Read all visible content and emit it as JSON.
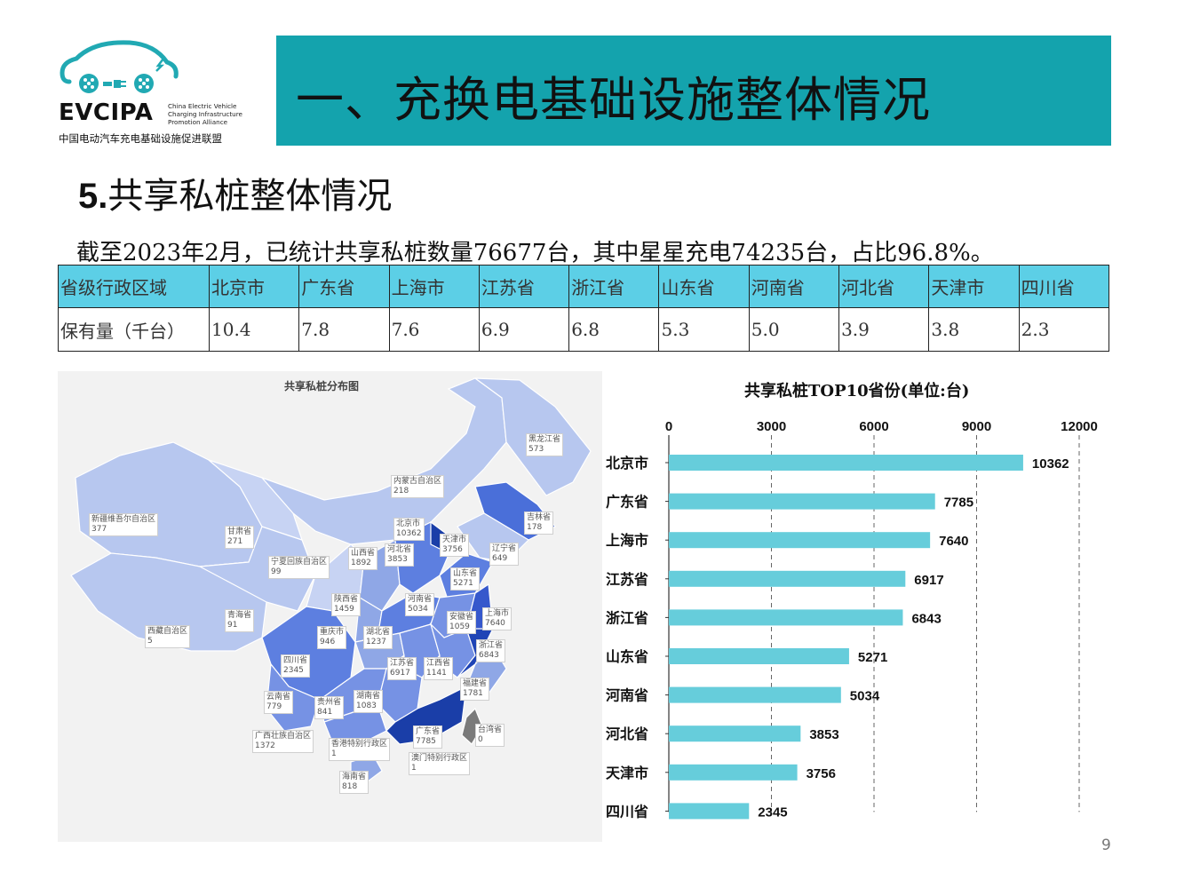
{
  "logo": {
    "wordmark": "EVCIPA",
    "en_lines": [
      "China Electric Vehicle",
      "Charging Infrastructure",
      "Promotion Alliance"
    ],
    "cn": "中国电动汽车充电基础设施促进联盟",
    "color": "#21a9b3"
  },
  "banner": {
    "title": "一、充换电基础设施整体情况",
    "color": "#14a3ad"
  },
  "section": {
    "num": "5.",
    "title": "共享私桩整体情况"
  },
  "summary": "截至2023年2月，已统计共享私桩数量76677台，其中星星充电74235台，占比96.8%。",
  "table": {
    "header_label": "省级行政区域",
    "row_label": "保有量（千台）",
    "provinces": [
      "北京市",
      "广东省",
      "上海市",
      "江苏省",
      "浙江省",
      "山东省",
      "河南省",
      "河北省",
      "天津市",
      "四川省"
    ],
    "values": [
      "10.4",
      "7.8",
      "7.6",
      "6.9",
      "6.8",
      "5.3",
      "5.0",
      "3.9",
      "3.8",
      "2.3"
    ],
    "header_color": "#5ccfe6"
  },
  "map": {
    "title": "共享私桩分布图",
    "labels": [
      {
        "name": "黑龙江省",
        "value": "573"
      },
      {
        "name": "内蒙古自治区",
        "value": "218"
      },
      {
        "name": "吉林省",
        "value": "178"
      },
      {
        "name": "新疆维吾尔自治区",
        "value": "377"
      },
      {
        "name": "甘肃省",
        "value": "271"
      },
      {
        "name": "北京市",
        "value": "10362"
      },
      {
        "name": "天津市",
        "value": "3756"
      },
      {
        "name": "辽宁省",
        "value": "649"
      },
      {
        "name": "河北省",
        "value": "3853"
      },
      {
        "name": "山西省",
        "value": "1892"
      },
      {
        "name": "宁夏回族自治区",
        "value": "99"
      },
      {
        "name": "山东省",
        "value": "5271"
      },
      {
        "name": "陕西省",
        "value": "1459"
      },
      {
        "name": "河南省",
        "value": "5034"
      },
      {
        "name": "青海省",
        "value": "91"
      },
      {
        "name": "上海市",
        "value": "7640"
      },
      {
        "name": "安徽省",
        "value": "1059"
      },
      {
        "name": "西藏自治区",
        "value": "5"
      },
      {
        "name": "重庆市",
        "value": "946"
      },
      {
        "name": "湖北省",
        "value": "1237"
      },
      {
        "name": "浙江省",
        "value": "6843"
      },
      {
        "name": "四川省",
        "value": "2345"
      },
      {
        "name": "江苏省",
        "value": "6917"
      },
      {
        "name": "江西省",
        "value": "1141"
      },
      {
        "name": "福建省",
        "value": "1781"
      },
      {
        "name": "云南省",
        "value": "779"
      },
      {
        "name": "贵州省",
        "value": "841"
      },
      {
        "name": "湖南省",
        "value": "1083"
      },
      {
        "name": "广东省",
        "value": "7785"
      },
      {
        "name": "台湾省",
        "value": "0"
      },
      {
        "name": "广西壮族自治区",
        "value": "1372"
      },
      {
        "name": "香港特别行政区",
        "value": "1"
      },
      {
        "name": "澳门特别行政区",
        "value": "1"
      },
      {
        "name": "海南省",
        "value": "818"
      }
    ]
  },
  "chart_data": {
    "type": "bar",
    "orientation": "horizontal",
    "title": "共享私桩TOP10省份(单位:台)",
    "categories": [
      "北京市",
      "广东省",
      "上海市",
      "江苏省",
      "浙江省",
      "山东省",
      "河南省",
      "河北省",
      "天津市",
      "四川省"
    ],
    "values": [
      10362,
      7785,
      7640,
      6917,
      6843,
      5271,
      5034,
      3853,
      3756,
      2345
    ],
    "xlim": [
      0,
      12000
    ],
    "xticks": [
      0,
      3000,
      6000,
      9000,
      12000
    ],
    "axis_position": "top",
    "grid": true,
    "bar_color": "#66cddb"
  },
  "page_number": "9"
}
